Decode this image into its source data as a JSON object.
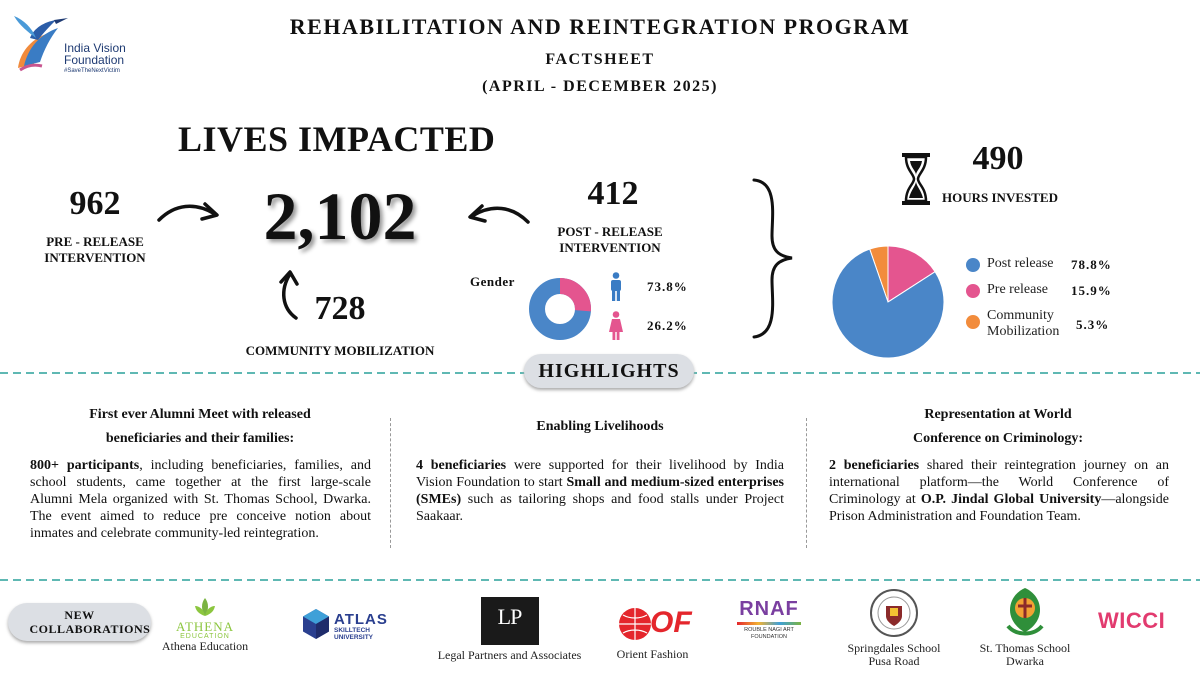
{
  "header": {
    "logo_name_line1": "India Vision",
    "logo_name_line2": "Foundation",
    "logo_tagline": "#SaveTheNextVictim",
    "title": "REHABILITATION AND REINTEGRATION PROGRAM",
    "subtitle": "FACTSHEET",
    "period": "(APRIL - DECEMBER 2025)"
  },
  "impact": {
    "heading": "LIVES IMPACTED",
    "total": "2,102",
    "pre_release_count": "962",
    "pre_release_label": "PRE - RELEASE INTERVENTION",
    "post_release_count": "412",
    "post_release_label": "POST - RELEASE INTERVENTION",
    "community_count": "728",
    "community_label": "COMMUNITY MOBILIZATION"
  },
  "gender": {
    "label": "Gender",
    "male_pct": "73.8%",
    "female_pct": "26.2%",
    "male_value": 73.8,
    "female_value": 26.2,
    "male_color": "#4a86c8",
    "female_color": "#e4558f"
  },
  "hours": {
    "count": "490",
    "label": "HOURS INVESTED"
  },
  "hours_split": {
    "items": [
      {
        "label": "Post release",
        "pct": "78.8%",
        "value": 78.8,
        "color": "#4a86c8"
      },
      {
        "label": "Pre release",
        "pct": "15.9%",
        "value": 15.9,
        "color": "#e4558f"
      },
      {
        "label": "Community Mobilization",
        "pct": "5.3%",
        "value": 5.3,
        "color": "#f28c3c"
      }
    ]
  },
  "highlights": {
    "title": "HIGHLIGHTS",
    "col1": {
      "heading_line1": "First ever Alumni Meet with released",
      "heading_line2": "beneficiaries and their families:",
      "bold": "800+ participants",
      "text": ", including beneficiaries, families, and school students, came together at the first large-scale Alumni Mela organized with St. Thomas School, Dwarka. The event aimed to reduce pre conceive notion about inmates and celebrate community-led reintegration."
    },
    "col2": {
      "heading": "Enabling Livelihoods",
      "bold1": "4 beneficiaries",
      "text1": " were supported for their livelihood by India Vision Foundation to start ",
      "bold2": "Small and medium-sized enterprises (SMEs)",
      "text2": " such as tailoring shops and food stalls under Project Saakaar."
    },
    "col3": {
      "heading_line1": "Representation at World",
      "heading_line2": "Conference on Criminology:",
      "bold1": "2 beneficiaries",
      "text1": " shared their reintegration journey on an international platform—the World Conference of Criminology at ",
      "bold2": "O.P. Jindal Global University",
      "text2": "—alongside Prison Administration and Foundation Team."
    }
  },
  "collaborations": {
    "label": "NEW COLLABORATIONS",
    "partners": [
      {
        "name": "Athena Education",
        "logo_text": "ATHENA",
        "logo_sub": "EDUCATION"
      },
      {
        "logo_text": "ATLAS",
        "logo_sub": "SKILLTECH UNIVERSITY"
      },
      {
        "name": "Legal Partners and Associates",
        "logo_text": "LP"
      },
      {
        "name": "Orient Fashion",
        "logo_text": "OF"
      },
      {
        "logo_text": "RNAF",
        "logo_sub": "ROUBLE NAGI ART FOUNDATION"
      },
      {
        "name_line1": "Springdales School",
        "name_line2": "Pusa Road"
      },
      {
        "name_line1": "St. Thomas School",
        "name_line2": "Dwarka"
      },
      {
        "logo_text": "WICCI"
      }
    ]
  },
  "colors": {
    "divider_teal": "#5fb8b3",
    "divider_yellow": "#e8c63a",
    "pill_bg": "#dcdfe4"
  }
}
